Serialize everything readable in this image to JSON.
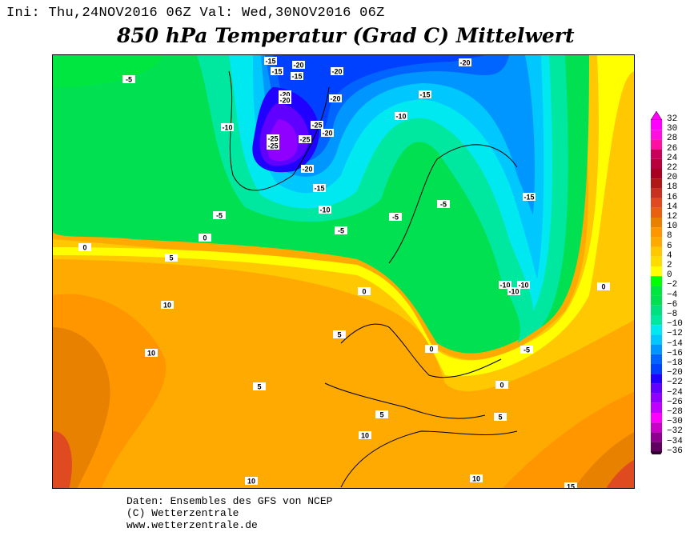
{
  "header": {
    "init_line": "Ini: Thu,24NOV2016 06Z Val: Wed,30NOV2016 06Z",
    "title": "850 hPa Temperatur (Grad C) Mittelwert"
  },
  "colorbar": {
    "levels": [
      32,
      30,
      28,
      26,
      24,
      22,
      20,
      18,
      16,
      14,
      12,
      10,
      8,
      6,
      4,
      2,
      0,
      -2,
      -4,
      -6,
      -8,
      -10,
      -12,
      -14,
      -16,
      -18,
      -20,
      -22,
      -24,
      -26,
      -28,
      -30,
      -32,
      -34,
      -36
    ],
    "colors": [
      "#ff00ff",
      "#ff10e0",
      "#ff10a0",
      "#c8005a",
      "#b8003c",
      "#a80020",
      "#b01818",
      "#c83020",
      "#e04a20",
      "#e86010",
      "#e88000",
      "#ff9600",
      "#ffaa00",
      "#ffc800",
      "#ffdc00",
      "#ffff00",
      "#00ff00",
      "#00e640",
      "#00e050",
      "#00e080",
      "#00e8a0",
      "#00e8f0",
      "#00c8ff",
      "#0096ff",
      "#0064ff",
      "#0040ff",
      "#2000ff",
      "#6000ff",
      "#9000ff",
      "#c000ff",
      "#ff00ff",
      "#c800c8",
      "#900090",
      "#600060"
    ],
    "top_color": "#ff00ff",
    "bottom_color": "#300030"
  },
  "contour_labels": [
    "-15",
    "-20",
    "-15",
    "-15",
    "-20",
    "-20",
    "-5",
    "-20",
    "-20",
    "-20",
    "-15",
    "-10",
    "-10",
    "-25",
    "-20",
    "-25",
    "-25",
    "-25",
    "-20",
    "-15",
    "-10",
    "-15",
    "-5",
    "-5",
    "-5",
    "-5",
    "0",
    "0",
    "5",
    "0",
    "0",
    "-10",
    "-10",
    "-10",
    "10",
    "10",
    "5",
    "0",
    "-5",
    "5",
    "0",
    "5",
    "5",
    "10",
    "10",
    "10",
    "15"
  ],
  "footer": {
    "line1": "Daten: Ensembles des GFS von NCEP",
    "line2": "(C) Wetterzentrale",
    "line3": "www.wetterzentrale.de"
  }
}
